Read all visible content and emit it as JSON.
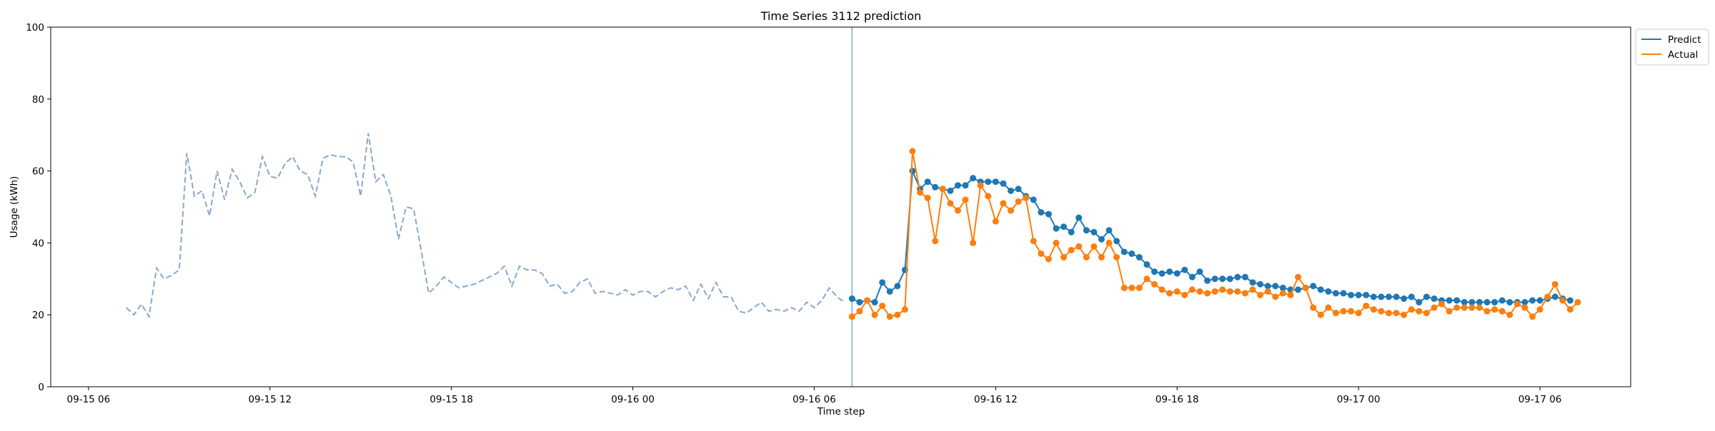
{
  "chart_data": {
    "type": "line",
    "title": "Time Series 3112 prediction",
    "xlabel": "Time step",
    "ylabel": "Usage (kWh)",
    "x_unit": "time (15-minute steps)",
    "xlim": [
      "09-15 04:45",
      "09-17 09:00"
    ],
    "ylim": [
      0,
      100
    ],
    "y_ticks": [
      0,
      20,
      40,
      60,
      80,
      100
    ],
    "x_ticks": [
      {
        "label": "09-15 06",
        "time": "09-15 06:00"
      },
      {
        "label": "09-15 12",
        "time": "09-15 12:00"
      },
      {
        "label": "09-15 18",
        "time": "09-15 18:00"
      },
      {
        "label": "09-16 00",
        "time": "09-16 00:00"
      },
      {
        "label": "09-16 06",
        "time": "09-16 06:00"
      },
      {
        "label": "09-16 12",
        "time": "09-16 12:00"
      },
      {
        "label": "09-16 18",
        "time": "09-16 18:00"
      },
      {
        "label": "09-17 00",
        "time": "09-17 00:00"
      },
      {
        "label": "09-17 06",
        "time": "09-17 06:00"
      }
    ],
    "forecast_start": "09-16 07:15",
    "grid": false,
    "legend_position": "top-right, outside plot",
    "legend": [
      "Predict",
      "Actual"
    ],
    "colors": {
      "history": "#8aa8cc",
      "predict": "#1f77b4",
      "actual": "#ff7f0e",
      "forecast_line": "#8aa8cc"
    },
    "history": {
      "start": "09-15 07:15",
      "step_minutes": 15,
      "values": [
        22,
        20,
        23,
        19.5,
        33,
        30,
        31,
        32.5,
        65,
        53,
        54.5,
        47.5,
        60,
        52,
        60.5,
        57,
        52.5,
        54,
        64,
        58.5,
        58,
        62,
        64,
        60,
        59,
        53,
        63.5,
        64.5,
        64,
        64,
        62.5,
        53,
        70.5,
        57,
        59,
        53,
        41,
        50,
        49.5,
        38,
        26,
        28,
        30.5,
        29,
        27.5,
        28,
        28.5,
        29.5,
        30.5,
        31.5,
        33.5,
        28,
        33.5,
        32.5,
        32.5,
        31.5,
        28,
        28.5,
        26,
        26.5,
        29,
        30,
        26,
        26.5,
        26,
        25.5,
        27,
        25.5,
        26.5,
        26.5,
        25,
        26.5,
        27.5,
        27,
        28,
        24,
        28.5,
        24.5,
        29,
        25,
        25,
        21,
        20.5,
        22,
        23.5,
        21,
        21.5,
        21,
        22,
        21,
        23.5,
        22,
        24,
        27.5,
        25,
        23.5
      ]
    },
    "series": [
      {
        "name": "Predict",
        "start": "09-16 07:15",
        "step_minutes": 15,
        "values": [
          24.5,
          23.5,
          24,
          23.5,
          29,
          26.5,
          28,
          32.5,
          60,
          55,
          57,
          55.5,
          55,
          54.5,
          56,
          56,
          58,
          57,
          57,
          57,
          56.5,
          54.5,
          55,
          53,
          52,
          48.5,
          48,
          44,
          44.5,
          43,
          47,
          43.5,
          43,
          41,
          43.5,
          40.5,
          37.5,
          37,
          36,
          34,
          32,
          31.5,
          32,
          31.5,
          32.5,
          30.5,
          32,
          29.5,
          30,
          30,
          30,
          30.5,
          30.5,
          29,
          28.5,
          28,
          28,
          27.5,
          27,
          27,
          27.5,
          28,
          27,
          26.5,
          26,
          26,
          25.5,
          25.5,
          25.5,
          25,
          25,
          25,
          25,
          24.5,
          25,
          23.5,
          25,
          24.5,
          24,
          24,
          24,
          23.5,
          23.5,
          23.5,
          23.5,
          23.5,
          24,
          23.5,
          23.5,
          23.5,
          24,
          24,
          24.5,
          25,
          24.5,
          24
        ]
      },
      {
        "name": "Actual",
        "start": "09-16 07:15",
        "step_minutes": 15,
        "values": [
          19.5,
          21,
          24,
          20,
          22.5,
          19.5,
          20,
          21.5,
          65.5,
          54,
          52.5,
          40.5,
          55,
          51,
          49,
          52,
          40,
          56,
          53,
          46,
          51,
          49,
          51.5,
          52.5,
          40.5,
          37,
          35.5,
          40,
          36,
          38,
          39,
          36,
          39,
          36,
          40,
          36,
          27.5,
          27.5,
          27.5,
          30,
          28.5,
          27,
          26,
          26.5,
          25.5,
          27,
          26.5,
          26,
          26.5,
          27,
          26.5,
          26.5,
          26,
          27,
          25.5,
          26.5,
          25,
          26,
          25.5,
          30.5,
          27.5,
          22,
          20,
          22,
          20.5,
          21,
          21,
          20.5,
          22.5,
          21.5,
          21,
          20.5,
          20.5,
          20,
          21.5,
          21,
          20.5,
          22,
          23,
          21,
          22,
          22,
          22,
          22,
          21,
          21.5,
          21,
          20,
          23,
          22,
          19.5,
          21.5,
          25,
          28.5,
          24,
          21.5,
          23.5
        ]
      }
    ]
  }
}
